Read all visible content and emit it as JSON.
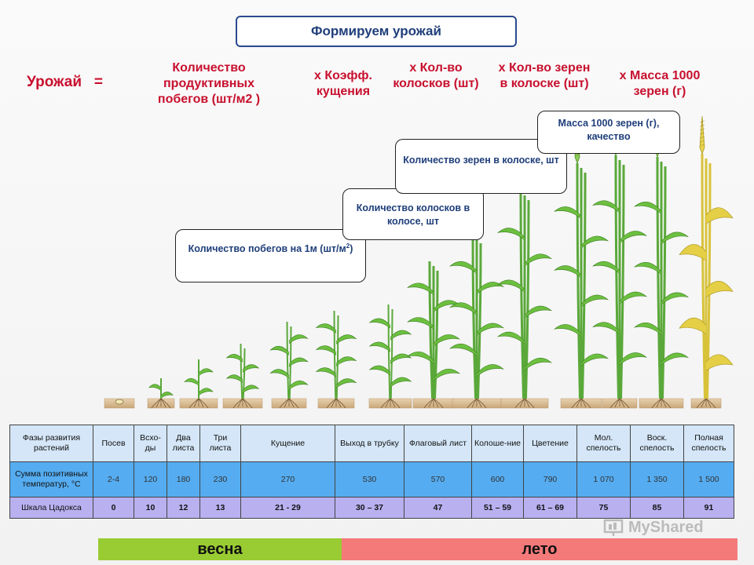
{
  "title": "Формируем урожай",
  "formula": {
    "lhs": "Урожай",
    "equals": "=",
    "terms": [
      "Количество продуктивных побегов (шт/м2 )",
      "х  Коэфф. кущения",
      "х   Кол-во колосков (шт)",
      "х  Кол-во зерен в колоске (шт)",
      "х  Масса 1000 зерен (г)"
    ]
  },
  "callouts": {
    "shoots": "Количество побегов на 1м (шт/м",
    "shoots_sup": "2",
    "shoots_end": ")",
    "spikelets": "Количество колосков в колосе, шт",
    "grains": "Количество зерен в колоске, шт",
    "mass": "Масса 1000 зерен (г), качество"
  },
  "table": {
    "phases_label": "Фазы развития растений",
    "phases": [
      "Посев",
      "Всхо-ды",
      "Два листа",
      "Три листа",
      "Кущение",
      "Выход в трубку",
      "Флаговый лист",
      "Колоше-ние",
      "Цветение",
      "Мол. спелость",
      "Воск. спелость",
      "Полная спелость"
    ],
    "temp_label": "Сумма позитивных температур, °С",
    "temps": [
      "2-4",
      "120",
      "180",
      "230",
      "270",
      "530",
      "570",
      "600",
      "790",
      "1 070",
      "1 350",
      "1 500"
    ],
    "zadoks_label": "Шкала Цадокса",
    "zadoks": [
      "0",
      "10",
      "12",
      "13",
      "21 - 29",
      "30 – 37",
      "47",
      "51 – 59",
      "61 – 69",
      "75",
      "85",
      "91"
    ]
  },
  "seasons": {
    "spring": "весна",
    "summer": "лето"
  },
  "colors": {
    "accent_red": "#c8102e",
    "title_blue": "#1f3e7a",
    "spring": "#99cc33",
    "summer": "#f47a7a"
  },
  "watermark": "MyShared"
}
